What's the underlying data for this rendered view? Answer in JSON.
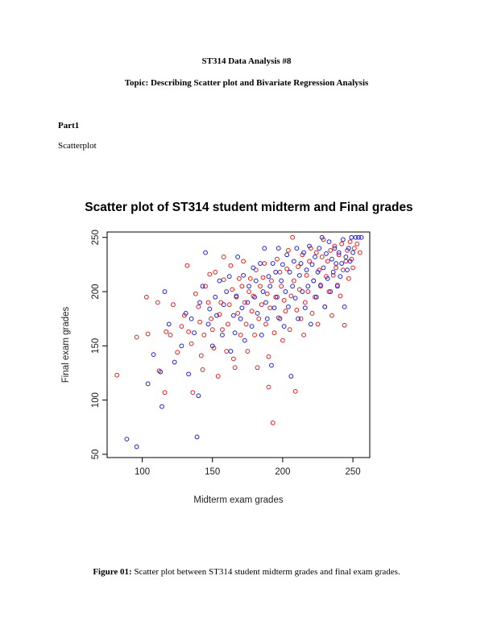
{
  "document": {
    "title": "ST314 Data Analysis #8",
    "topic": "Topic: Describing Scatter plot and Bivariate Regression Analysis",
    "section_heading": "Part1",
    "section_label": "Scatterplot",
    "caption_prefix": "Figure 01:",
    "caption_text": "Scatter plot between ST314 student midterm grades and final exam grades."
  },
  "chart_data": {
    "type": "scatter",
    "title": "Scatter plot of ST314 student midterm and Final grades",
    "xlabel": "Midterm exam grades",
    "ylabel": "Final exam grades",
    "xlim": [
      75,
      262
    ],
    "ylim": [
      47,
      255
    ],
    "xticks": [
      100,
      150,
      200,
      250
    ],
    "yticks": [
      50,
      100,
      150,
      200,
      250
    ],
    "marker": "open-circle",
    "grid": false,
    "series": [
      {
        "color": "#e02020",
        "points": [
          [
            82,
            123
          ],
          [
            96,
            158
          ],
          [
            103,
            195
          ],
          [
            104,
            161
          ],
          [
            111,
            190
          ],
          [
            112,
            127
          ],
          [
            116,
            107
          ],
          [
            117,
            163
          ],
          [
            120,
            160
          ],
          [
            122,
            188
          ],
          [
            125,
            144
          ],
          [
            128,
            168
          ],
          [
            130,
            178
          ],
          [
            132,
            224
          ],
          [
            133,
            163
          ],
          [
            135,
            152
          ],
          [
            136,
            107
          ],
          [
            138,
            198
          ],
          [
            140,
            186
          ],
          [
            141,
            172
          ],
          [
            142,
            141
          ],
          [
            143,
            128
          ],
          [
            144,
            160
          ],
          [
            145,
            205
          ],
          [
            147,
            190
          ],
          [
            148,
            216
          ],
          [
            149,
            175
          ],
          [
            150,
            165
          ],
          [
            151,
            148
          ],
          [
            152,
            218
          ],
          [
            154,
            122
          ],
          [
            155,
            179
          ],
          [
            156,
            190
          ],
          [
            157,
            165
          ],
          [
            158,
            211
          ],
          [
            158,
            232
          ],
          [
            160,
            145
          ],
          [
            161,
            170
          ],
          [
            162,
            188
          ],
          [
            163,
            224
          ],
          [
            164,
            202
          ],
          [
            165,
            138
          ],
          [
            166,
            130
          ],
          [
            167,
            195
          ],
          [
            168,
            180
          ],
          [
            169,
            212
          ],
          [
            170,
            160
          ],
          [
            171,
            205
          ],
          [
            172,
            228
          ],
          [
            173,
            190
          ],
          [
            174,
            170
          ],
          [
            175,
            145
          ],
          [
            176,
            200
          ],
          [
            177,
            212
          ],
          [
            178,
            182
          ],
          [
            179,
            196
          ],
          [
            180,
            160
          ],
          [
            181,
            220
          ],
          [
            182,
            130
          ],
          [
            183,
            175
          ],
          [
            184,
            205
          ],
          [
            185,
            188
          ],
          [
            186,
            213
          ],
          [
            187,
            226
          ],
          [
            188,
            170
          ],
          [
            189,
            198
          ],
          [
            190,
            140
          ],
          [
            190,
            112
          ],
          [
            191,
            185
          ],
          [
            192,
            210
          ],
          [
            193,
            79
          ],
          [
            194,
            162
          ],
          [
            195,
            195
          ],
          [
            196,
            230
          ],
          [
            197,
            176
          ],
          [
            198,
            218
          ],
          [
            199,
            205
          ],
          [
            200,
            155
          ],
          [
            201,
            192
          ],
          [
            202,
            182
          ],
          [
            203,
            221
          ],
          [
            204,
            238
          ],
          [
            205,
            165
          ],
          [
            206,
            196
          ],
          [
            207,
            250
          ],
          [
            208,
            210
          ],
          [
            209,
            108
          ],
          [
            210,
            183
          ],
          [
            211,
            223
          ],
          [
            212,
            202
          ],
          [
            213,
            175
          ],
          [
            214,
            234
          ],
          [
            215,
            160
          ],
          [
            216,
            190
          ],
          [
            217,
            215
          ],
          [
            218,
            200
          ],
          [
            219,
            228
          ],
          [
            220,
            240
          ],
          [
            221,
            180
          ],
          [
            222,
            210
          ],
          [
            223,
            195
          ],
          [
            224,
            236
          ],
          [
            225,
            170
          ],
          [
            226,
            220
          ],
          [
            227,
            205
          ],
          [
            228,
            232
          ],
          [
            229,
            248
          ],
          [
            230,
            186
          ],
          [
            231,
            214
          ],
          [
            232,
            228
          ],
          [
            233,
            200
          ],
          [
            234,
            238
          ],
          [
            235,
            178
          ],
          [
            236,
            215
          ],
          [
            237,
            242
          ],
          [
            238,
            222
          ],
          [
            239,
            206
          ],
          [
            240,
            234
          ],
          [
            241,
            196
          ],
          [
            242,
            244
          ],
          [
            243,
            220
          ],
          [
            244,
            169
          ],
          [
            245,
            228
          ],
          [
            246,
            238
          ],
          [
            247,
            212
          ],
          [
            248,
            246
          ],
          [
            249,
            230
          ],
          [
            250,
            222
          ],
          [
            251,
            240
          ],
          [
            253,
            244
          ],
          [
            255,
            236
          ]
        ]
      },
      {
        "color": "#2020d0",
        "points": [
          [
            89,
            64
          ],
          [
            96,
            57
          ],
          [
            104,
            115
          ],
          [
            108,
            142
          ],
          [
            113,
            126
          ],
          [
            114,
            94
          ],
          [
            116,
            200
          ],
          [
            119,
            170
          ],
          [
            123,
            135
          ],
          [
            128,
            150
          ],
          [
            131,
            180
          ],
          [
            133,
            124
          ],
          [
            135,
            175
          ],
          [
            137,
            162
          ],
          [
            139,
            66
          ],
          [
            140,
            104
          ],
          [
            141,
            190
          ],
          [
            143,
            205
          ],
          [
            145,
            236
          ],
          [
            147,
            170
          ],
          [
            148,
            184
          ],
          [
            150,
            150
          ],
          [
            152,
            195
          ],
          [
            153,
            178
          ],
          [
            155,
            210
          ],
          [
            157,
            160
          ],
          [
            158,
            188
          ],
          [
            160,
            200
          ],
          [
            162,
            214
          ],
          [
            163,
            145
          ],
          [
            165,
            178
          ],
          [
            166,
            162
          ],
          [
            167,
            196
          ],
          [
            168,
            232
          ],
          [
            170,
            175
          ],
          [
            171,
            185
          ],
          [
            172,
            215
          ],
          [
            173,
            155
          ],
          [
            175,
            190
          ],
          [
            176,
            205
          ],
          [
            178,
            168
          ],
          [
            179,
            222
          ],
          [
            180,
            195
          ],
          [
            181,
            210
          ],
          [
            182,
            180
          ],
          [
            184,
            226
          ],
          [
            185,
            160
          ],
          [
            186,
            200
          ],
          [
            187,
            240
          ],
          [
            188,
            190
          ],
          [
            189,
            175
          ],
          [
            190,
            214
          ],
          [
            191,
            205
          ],
          [
            192,
            132
          ],
          [
            193,
            226
          ],
          [
            194,
            185
          ],
          [
            195,
            218
          ],
          [
            196,
            195
          ],
          [
            197,
            240
          ],
          [
            198,
            175
          ],
          [
            199,
            210
          ],
          [
            200,
            225
          ],
          [
            201,
            168
          ],
          [
            202,
            200
          ],
          [
            203,
            234
          ],
          [
            204,
            186
          ],
          [
            205,
            218
          ],
          [
            206,
            122
          ],
          [
            207,
            205
          ],
          [
            208,
            228
          ],
          [
            209,
            194
          ],
          [
            210,
            240
          ],
          [
            211,
            175
          ],
          [
            212,
            215
          ],
          [
            213,
            226
          ],
          [
            214,
            200
          ],
          [
            215,
            236
          ],
          [
            216,
            185
          ],
          [
            217,
            220
          ],
          [
            218,
            205
          ],
          [
            219,
            242
          ],
          [
            220,
            170
          ],
          [
            221,
            225
          ],
          [
            222,
            210
          ],
          [
            223,
            232
          ],
          [
            224,
            195
          ],
          [
            225,
            218
          ],
          [
            226,
            240
          ],
          [
            227,
            206
          ],
          [
            228,
            250
          ],
          [
            229,
            222
          ],
          [
            230,
            186
          ],
          [
            231,
            235
          ],
          [
            232,
            212
          ],
          [
            233,
            246
          ],
          [
            234,
            200
          ],
          [
            235,
            230
          ],
          [
            236,
            218
          ],
          [
            237,
            240
          ],
          [
            238,
            226
          ],
          [
            239,
            205
          ],
          [
            240,
            236
          ],
          [
            241,
            214
          ],
          [
            242,
            226
          ],
          [
            243,
            248
          ],
          [
            244,
            186
          ],
          [
            245,
            232
          ],
          [
            246,
            220
          ],
          [
            247,
            240
          ],
          [
            248,
            228
          ],
          [
            249,
            250
          ],
          [
            250,
            236
          ],
          [
            252,
            250
          ],
          [
            254,
            250
          ],
          [
            256,
            250
          ]
        ]
      }
    ]
  }
}
